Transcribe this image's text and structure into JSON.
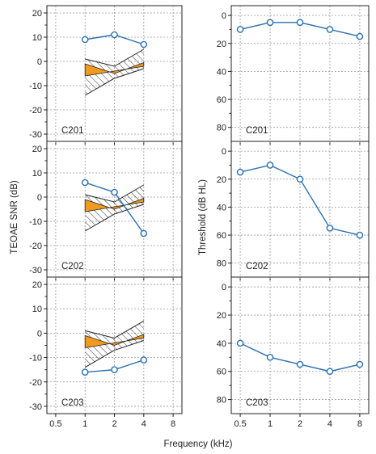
{
  "colors": {
    "series": "#2a6fb0",
    "marker_fill": "#ffffff",
    "grid": "#9a9a9a",
    "noise_fill": "#f29a1f",
    "hatch": "#333333"
  },
  "chart_data": [
    {
      "type": "line",
      "panel": "left",
      "label": "C201",
      "x": [
        1,
        2,
        4
      ],
      "values": [
        9,
        11,
        7
      ],
      "xscale": "log2",
      "xlim": [
        0.5,
        8
      ],
      "ylim": [
        -33,
        23
      ],
      "yticks": [
        20,
        10,
        0,
        -10,
        -20,
        -30
      ],
      "xticks": [
        0.5,
        1,
        2,
        4,
        8
      ],
      "grid": true
    },
    {
      "type": "line",
      "panel": "right",
      "label": "C201",
      "x": [
        0.5,
        1,
        2,
        4,
        8
      ],
      "values": [
        10,
        5,
        5,
        10,
        15
      ],
      "xscale": "log2",
      "xlim": [
        0.5,
        8
      ],
      "ylim": [
        -7,
        90
      ],
      "yinverted": true,
      "yticks": [
        0,
        20,
        40,
        60,
        80
      ],
      "xticks": [
        0.5,
        1,
        2,
        4,
        8
      ],
      "grid": true
    },
    {
      "type": "line",
      "panel": "left",
      "label": "C202",
      "x": [
        1,
        2,
        4
      ],
      "values": [
        6,
        2,
        -15
      ],
      "xscale": "log2",
      "xlim": [
        0.5,
        8
      ],
      "ylim": [
        -33,
        23
      ],
      "yticks": [
        20,
        10,
        0,
        -10,
        -20,
        -30
      ],
      "xticks": [
        0.5,
        1,
        2,
        4,
        8
      ],
      "grid": true
    },
    {
      "type": "line",
      "panel": "right",
      "label": "C202",
      "x": [
        0.5,
        1,
        2,
        4,
        8
      ],
      "values": [
        15,
        10,
        20,
        55,
        60
      ],
      "xscale": "log2",
      "xlim": [
        0.5,
        8
      ],
      "ylim": [
        -7,
        90
      ],
      "yinverted": true,
      "yticks": [
        0,
        20,
        40,
        60,
        80
      ],
      "xticks": [
        0.5,
        1,
        2,
        4,
        8
      ],
      "grid": true
    },
    {
      "type": "line",
      "panel": "left",
      "label": "C203",
      "x": [
        1,
        2,
        4
      ],
      "values": [
        -16,
        -15,
        -11
      ],
      "xscale": "log2",
      "xlim": [
        0.5,
        8
      ],
      "ylim": [
        -33,
        23
      ],
      "yticks": [
        20,
        10,
        0,
        -10,
        -20,
        -30
      ],
      "xticks": [
        0.5,
        1,
        2,
        4,
        8
      ],
      "grid": true
    },
    {
      "type": "line",
      "panel": "right",
      "label": "C203",
      "x": [
        0.5,
        1,
        2,
        4,
        8
      ],
      "values": [
        40,
        50,
        55,
        60,
        55
      ],
      "xscale": "log2",
      "xlim": [
        0.5,
        8
      ],
      "ylim": [
        -7,
        90
      ],
      "yinverted": true,
      "yticks": [
        0,
        20,
        40,
        60,
        80
      ],
      "xticks": [
        0.5,
        1,
        2,
        4,
        8
      ],
      "grid": true
    }
  ],
  "norm_region": {
    "x": [
      1,
      2,
      4
    ],
    "hatched_upper": [
      1,
      -2,
      5
    ],
    "hatched_lower": [
      -14,
      -7,
      -3
    ],
    "filled_upper": [
      -1,
      -5,
      -0.5
    ],
    "filled_lower": [
      -6,
      -4,
      -2
    ]
  },
  "labels": {
    "left_ylabel": "TEOAE SNR (dB)",
    "right_ylabel": "Threshold (dB HL)",
    "xlabel": "Frequency (kHz)",
    "left_xticklabels": [
      "0.5",
      "1",
      "2",
      "4",
      "8"
    ],
    "right_xticklabels": [
      "0.5",
      "1",
      "2",
      "4",
      "8"
    ]
  }
}
